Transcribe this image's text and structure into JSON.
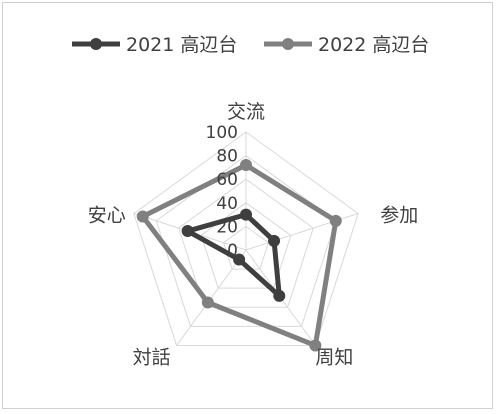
{
  "chart_data": {
    "type": "radar",
    "categories": [
      "交流",
      "参加",
      "周知",
      "対話",
      "安心"
    ],
    "rlim": [
      0,
      100
    ],
    "ticks": [
      0,
      20,
      40,
      60,
      80,
      100
    ],
    "tick_labels": [
      "0",
      "20",
      "40",
      "60",
      "80",
      "100"
    ],
    "legend_position": "top",
    "series": [
      {
        "name": "2021 高辺台",
        "color": "#3f3f3f",
        "values": [
          30,
          25,
          48,
          10,
          52
        ]
      },
      {
        "name": "2022 高辺台",
        "color": "#808080",
        "values": [
          72,
          80,
          100,
          55,
          92
        ]
      }
    ]
  }
}
